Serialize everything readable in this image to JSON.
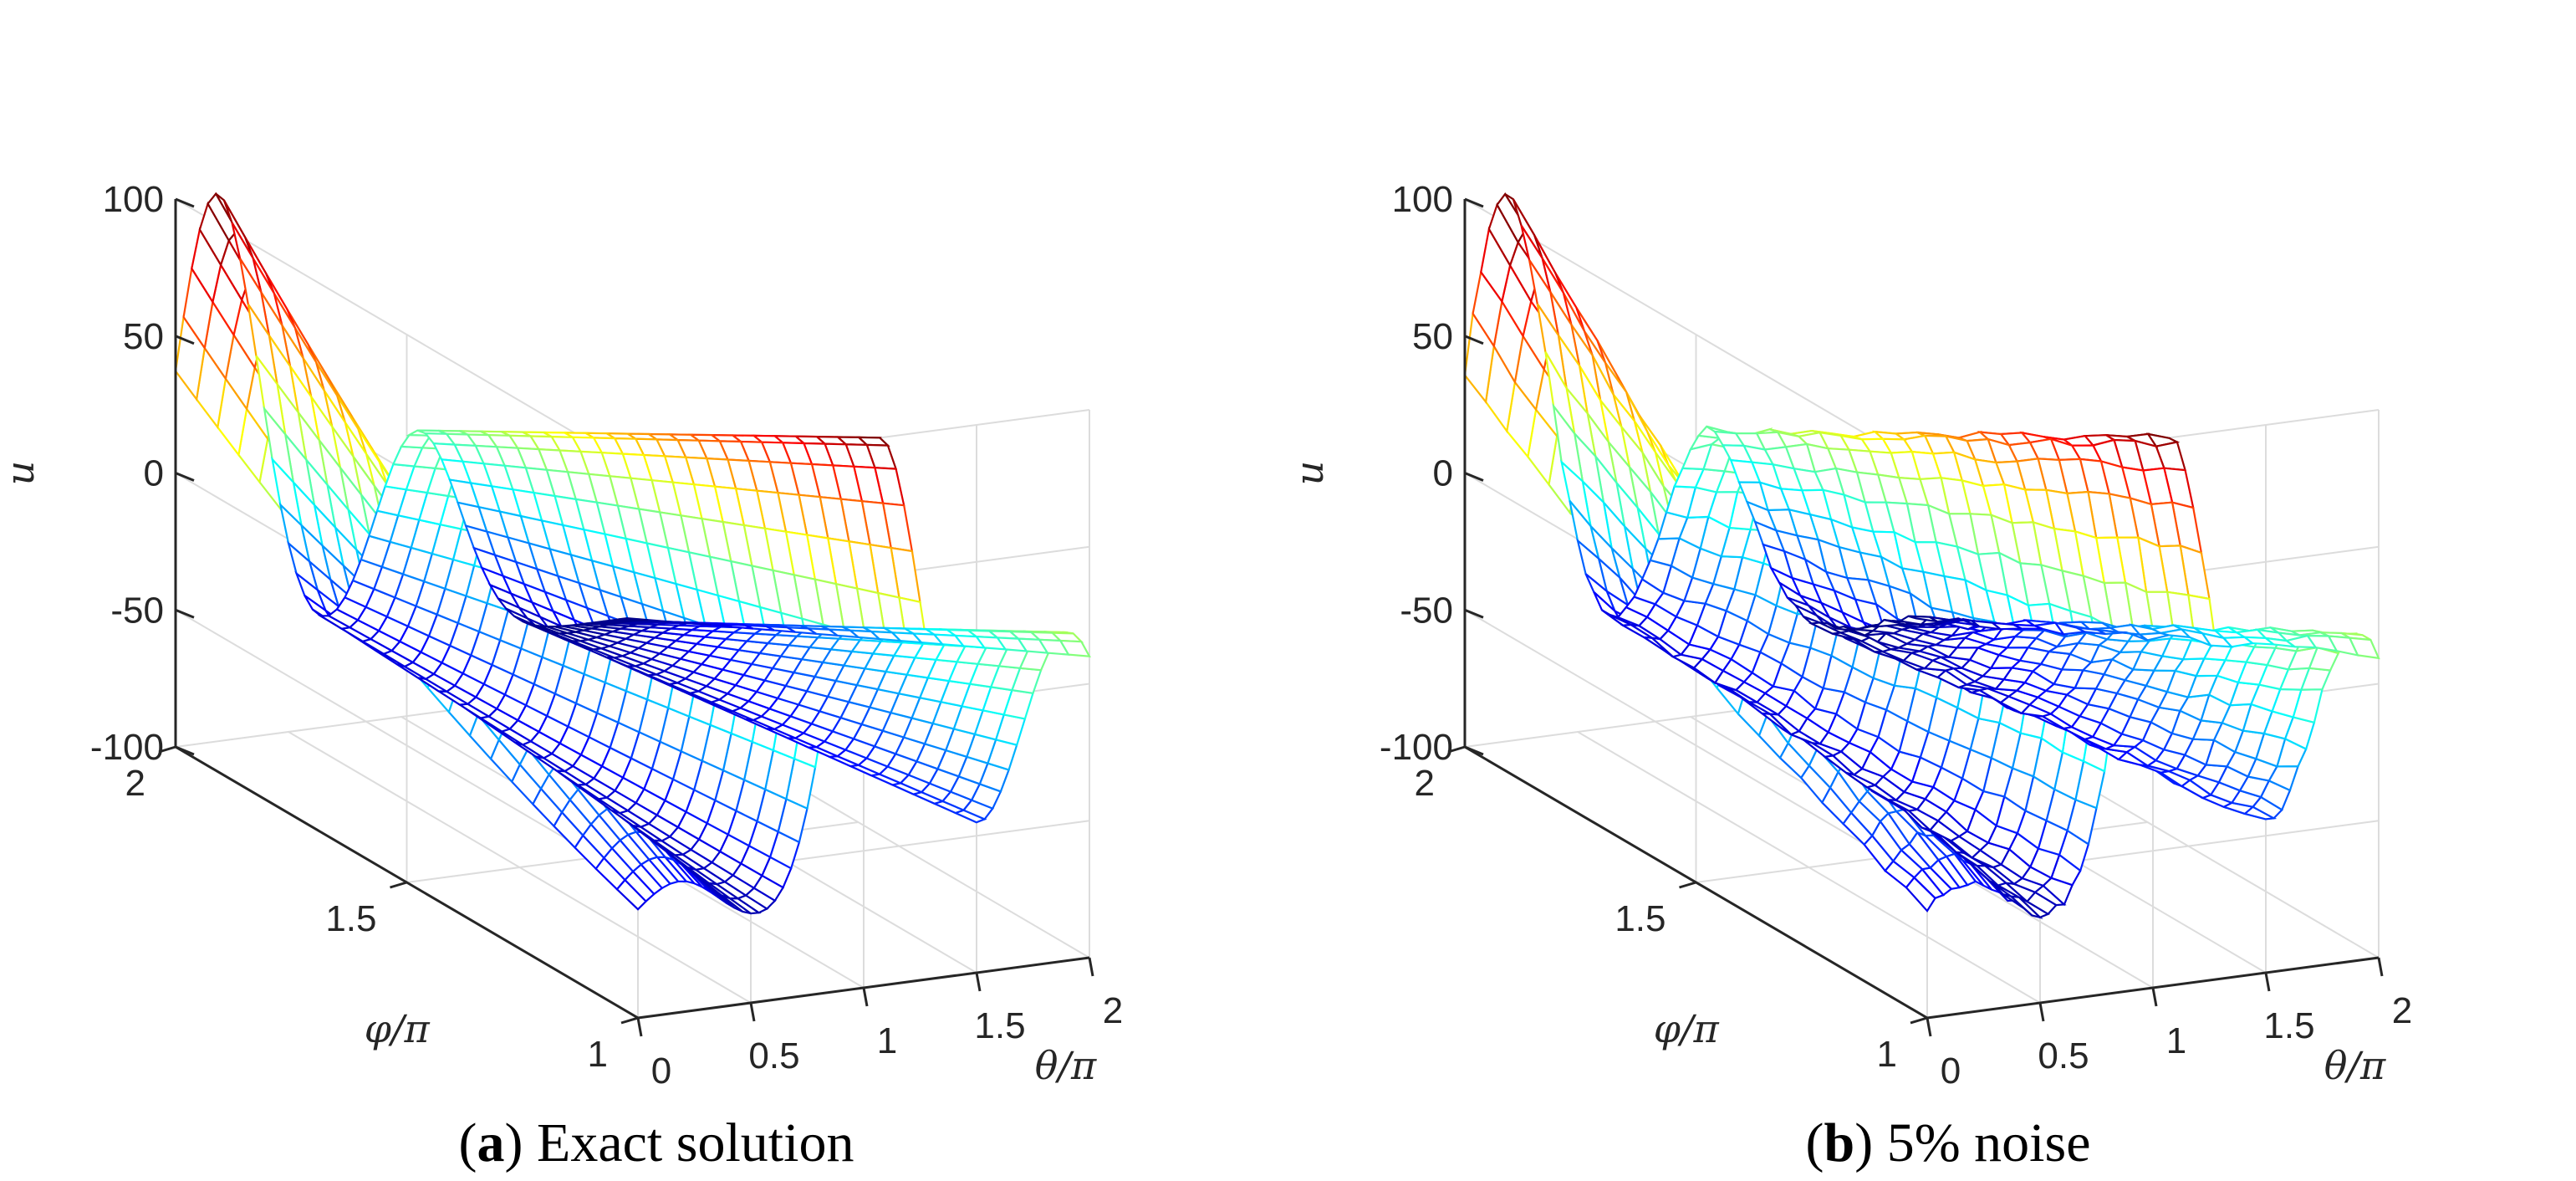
{
  "chart_data": [
    {
      "type": "surface",
      "caption_label": "a",
      "caption_text": "Exact solution",
      "xlabel": "θ/π",
      "ylabel": "φ/π",
      "zlabel": "u",
      "xlim": [
        0,
        2
      ],
      "ylim": [
        1,
        2
      ],
      "zlim": [
        -100,
        100
      ],
      "xticks": [
        "0",
        "0.5",
        "1",
        "1.5",
        "2"
      ],
      "yticks": [
        "1",
        "1.5",
        "2"
      ],
      "zticks": [
        "-100",
        "-50",
        "0",
        "50",
        "100"
      ],
      "grid": true,
      "colormap": "jet",
      "style": "mesh",
      "noise": 0
    },
    {
      "type": "surface",
      "caption_label": "b",
      "caption_text": "5% noise",
      "xlabel": "θ/π",
      "ylabel": "φ/π",
      "zlabel": "u",
      "xlim": [
        0,
        2
      ],
      "ylim": [
        1,
        2
      ],
      "zlim": [
        -100,
        100
      ],
      "xticks": [
        "0",
        "0.5",
        "1",
        "1.5",
        "2"
      ],
      "yticks": [
        "1",
        "1.5",
        "2"
      ],
      "zticks": [
        "-100",
        "-50",
        "0",
        "50",
        "100"
      ],
      "grid": true,
      "colormap": "jet",
      "style": "mesh",
      "noise": 0.05
    }
  ]
}
